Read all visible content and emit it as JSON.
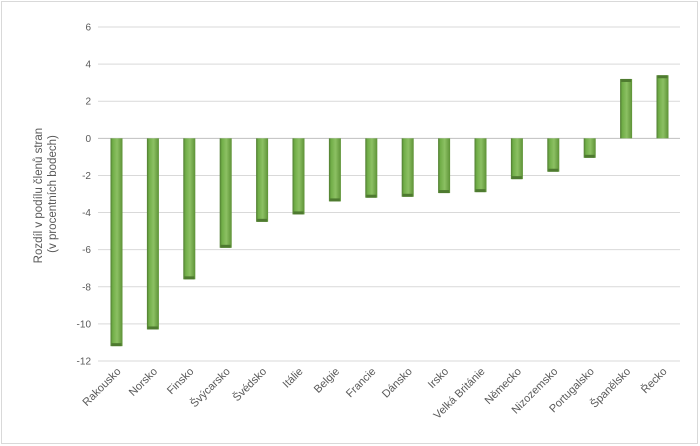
{
  "chart_data": {
    "type": "bar",
    "categories": [
      "Rakousko",
      "Norsko",
      "Finsko",
      "Švýcarsko",
      "Švédsko",
      "Itálie",
      "Belgie",
      "Francie",
      "Dánsko",
      "Irsko",
      "Velká Británie",
      "Německo",
      "Nizozemsko",
      "Portugalsko",
      "Španělsko",
      "Řecko"
    ],
    "values": [
      -11.2,
      -10.3,
      -7.6,
      -5.9,
      -4.5,
      -4.1,
      -3.4,
      -3.2,
      -3.15,
      -2.95,
      -2.9,
      -2.2,
      -1.8,
      -1.05,
      3.2,
      3.4
    ],
    "ylabel_lines": [
      "Rozdíl v podílu členů stran",
      "(v procentních bodech)"
    ],
    "xlabel": "",
    "ylim": [
      -12,
      6
    ],
    "yticks": [
      -12,
      -10,
      -8,
      -6,
      -4,
      -2,
      0,
      2,
      4,
      6
    ],
    "grid": true,
    "legend": "none",
    "colors": {
      "bar_fill": "#70ad47",
      "bar_dark": "#4e7a30",
      "bar_light": "#8cc063"
    }
  }
}
